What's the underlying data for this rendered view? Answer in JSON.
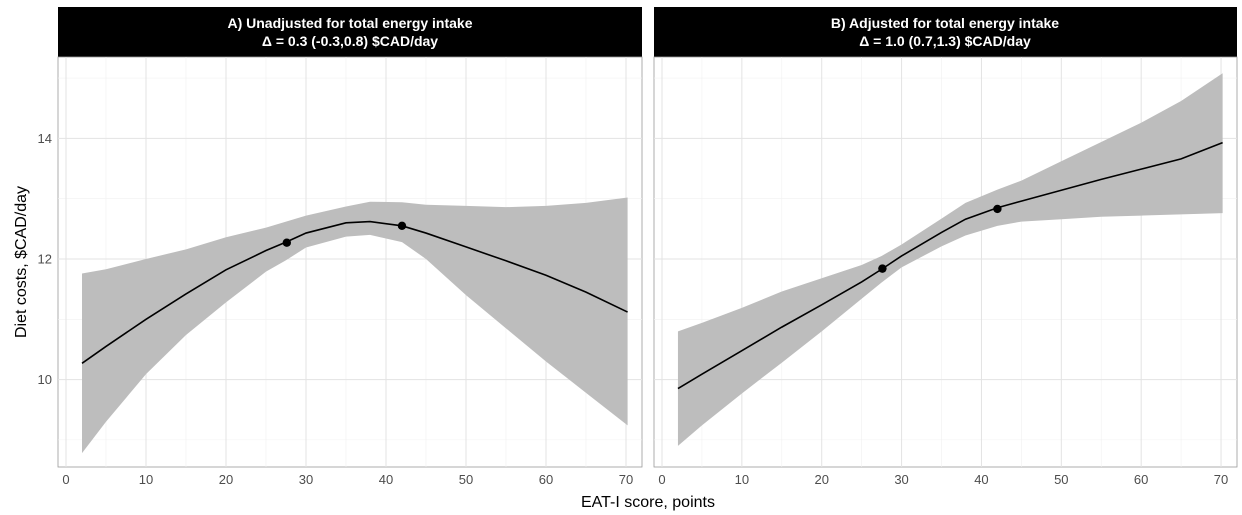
{
  "chart_data": {
    "type": "line",
    "xlabel": "EAT-I score, points",
    "ylabel": "Diet costs, $CAD/day",
    "xlim": [
      -1,
      72
    ],
    "ylim": [
      8.55,
      15.35
    ],
    "x_ticks": [
      0,
      10,
      20,
      30,
      40,
      50,
      60,
      70
    ],
    "y_ticks": [
      10,
      12,
      14
    ],
    "grid": true,
    "panels": [
      {
        "title_line1": "A) Unadjusted for total energy intake",
        "title_line2": "Δ =   0.3 (-0.3,0.8) $CAD/day",
        "fit": {
          "x": [
            2,
            5,
            10,
            15,
            20,
            25,
            27.5,
            30,
            35,
            38,
            42,
            45,
            50,
            55,
            60,
            65,
            70.2
          ],
          "y": [
            10.27,
            10.55,
            11.0,
            11.42,
            11.82,
            12.14,
            12.28,
            12.43,
            12.6,
            12.62,
            12.55,
            12.43,
            12.2,
            11.97,
            11.73,
            11.45,
            11.12
          ],
          "lower": [
            8.78,
            9.3,
            10.09,
            10.74,
            11.28,
            11.79,
            11.98,
            12.19,
            12.37,
            12.4,
            12.28,
            12.0,
            11.4,
            10.85,
            10.3,
            9.78,
            9.24
          ],
          "upper": [
            11.76,
            11.83,
            12.0,
            12.16,
            12.36,
            12.52,
            12.62,
            12.72,
            12.87,
            12.95,
            12.94,
            12.9,
            12.88,
            12.86,
            12.88,
            12.93,
            13.02
          ]
        },
        "points": {
          "x": [
            27.6,
            42
          ],
          "y": [
            12.27,
            12.55
          ]
        }
      },
      {
        "title_line1": "B) Adjusted for total energy intake",
        "title_line2": "Δ =   1.0 (0.7,1.3) $CAD/day",
        "fit": {
          "x": [
            2,
            5,
            10,
            15,
            20,
            25,
            27.5,
            30,
            35,
            38,
            42,
            45,
            50,
            55,
            60,
            65,
            70.2
          ],
          "y": [
            9.85,
            10.09,
            10.48,
            10.87,
            11.24,
            11.62,
            11.83,
            12.05,
            12.44,
            12.66,
            12.85,
            12.96,
            13.14,
            13.32,
            13.49,
            13.66,
            13.93
          ],
          "lower": [
            8.9,
            9.24,
            9.77,
            10.28,
            10.8,
            11.34,
            11.61,
            11.86,
            12.21,
            12.39,
            12.55,
            12.62,
            12.66,
            12.7,
            12.72,
            12.74,
            12.76
          ],
          "upper": [
            10.8,
            10.94,
            11.19,
            11.46,
            11.68,
            11.9,
            12.05,
            12.24,
            12.67,
            12.93,
            13.15,
            13.3,
            13.62,
            13.94,
            14.26,
            14.62,
            15.08
          ]
        },
        "points": {
          "x": [
            27.6,
            42
          ],
          "y": [
            11.84,
            12.83
          ]
        }
      }
    ]
  },
  "colors": {
    "ribbon": "#bdbdbd",
    "line": "#000000",
    "strip": "#000000",
    "strip_text": "#ffffff"
  }
}
